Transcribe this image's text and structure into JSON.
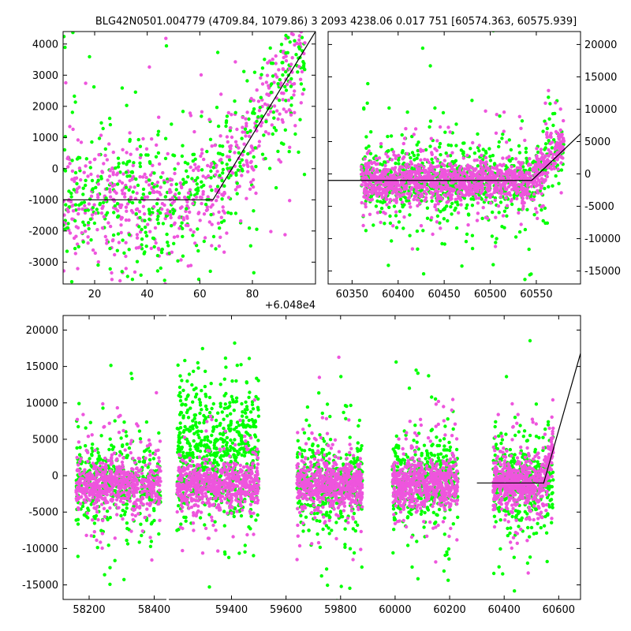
{
  "title": "BLG42N0501.004779 (4709.84, 1079.86)   3 2093 4238.06 0.017 751 [60574.363, 60575.939]",
  "colors": {
    "series_green": "#00ff00",
    "series_magenta": "#ee55dd",
    "model_line": "#000000"
  },
  "chart_data": [
    {
      "type": "scatter",
      "panel": "top-left",
      "offset_label": "+6.048e4",
      "xlim": [
        8,
        104
      ],
      "ylim": [
        -3700,
        4400
      ],
      "x_ticks": [
        20,
        40,
        60,
        80
      ],
      "y_ticks": [
        -3000,
        -2000,
        -1000,
        0,
        1000,
        2000,
        3000,
        4000
      ],
      "y_axis_side": "left",
      "series": [
        {
          "color": "green",
          "x_range": [
            8,
            100
          ],
          "baseline": -900,
          "spread": 1500,
          "rise_start": 64,
          "n": 520
        },
        {
          "color": "magenta",
          "x_range": [
            8,
            100
          ],
          "baseline": -1000,
          "spread": 1200,
          "rise_start": 64,
          "n": 620
        }
      ],
      "model": {
        "x": [
          8,
          65,
          104
        ],
        "y": [
          -1000,
          -1000,
          4400
        ]
      }
    },
    {
      "type": "scatter",
      "panel": "top-right",
      "xlim": [
        60324,
        60598
      ],
      "ylim": [
        -17000,
        22000
      ],
      "x_ticks": [
        60350,
        60400,
        60450,
        60500,
        60550
      ],
      "y_ticks": [
        -15000,
        -10000,
        -5000,
        0,
        5000,
        10000,
        15000,
        20000
      ],
      "y_axis_side": "right",
      "series": [
        {
          "color": "green",
          "x_range": [
            60360,
            60580
          ],
          "baseline": -1000,
          "spread": 5000,
          "n": 900
        },
        {
          "color": "magenta",
          "x_range": [
            60360,
            60580
          ],
          "baseline": -1100,
          "spread": 1800,
          "n": 1300
        }
      ],
      "model": {
        "x": [
          60324,
          60545,
          60598
        ],
        "y": [
          -1000,
          -1000,
          6200
        ]
      }
    },
    {
      "type": "scatter",
      "panel": "bottom",
      "xlim": [
        58120,
        58440,
        59170,
        60680
      ],
      "ylim": [
        -17000,
        22000
      ],
      "x_ticks": [
        58200,
        58400,
        59400,
        59600,
        59800,
        60000,
        60200,
        60400,
        60600
      ],
      "y_ticks": [
        -15000,
        -10000,
        -5000,
        0,
        5000,
        10000,
        15000,
        20000
      ],
      "y_axis_side": "left",
      "seasons": [
        [
          58160,
          58420
        ],
        [
          59200,
          59500
        ],
        [
          59640,
          59880
        ],
        [
          59990,
          60230
        ],
        [
          60360,
          60580
        ]
      ],
      "series": [
        {
          "color": "green",
          "baseline": -1000,
          "spread": 5000,
          "n_per_season": 420
        },
        {
          "color": "magenta",
          "baseline": -1100,
          "spread": 1800,
          "n_per_season": 620
        }
      ],
      "model": {
        "x": [
          60300,
          60545,
          60680
        ],
        "y": [
          -1000,
          -1000,
          16800
        ]
      }
    }
  ]
}
